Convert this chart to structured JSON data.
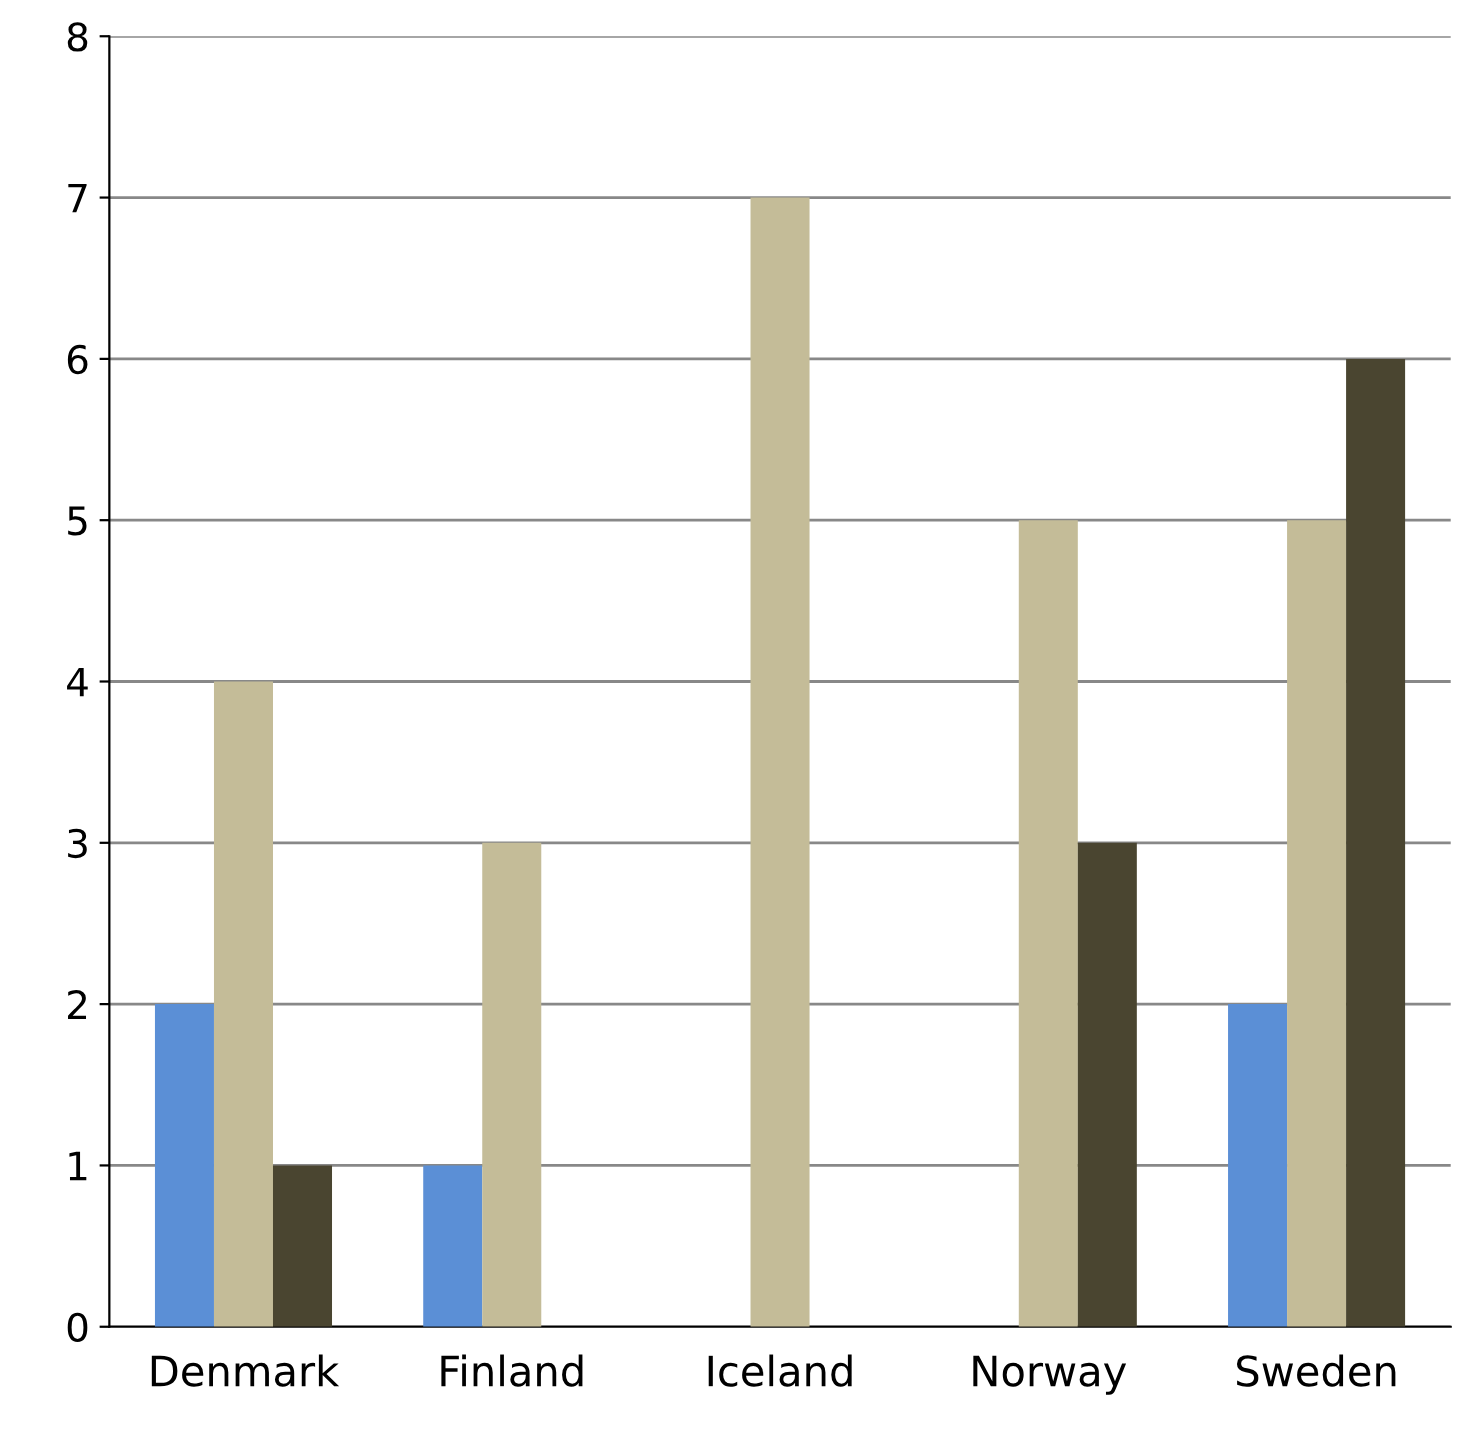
{
  "chart_data": {
    "type": "bar",
    "categories": [
      "Denmark",
      "Finland",
      "Iceland",
      "Norway",
      "Sweden"
    ],
    "series": [
      {
        "color": "#5b8fd6",
        "values": [
          2,
          1,
          0,
          0,
          2
        ]
      },
      {
        "color": "#c4bc98",
        "values": [
          4,
          3,
          7,
          5,
          5
        ]
      },
      {
        "color": "#4a4530",
        "values": [
          1,
          0,
          0,
          3,
          6
        ]
      }
    ],
    "ylim": [
      0,
      8
    ],
    "yticks": [
      0,
      1,
      2,
      3,
      4,
      5,
      6,
      7,
      8
    ],
    "grid": "y",
    "legend": false
  }
}
